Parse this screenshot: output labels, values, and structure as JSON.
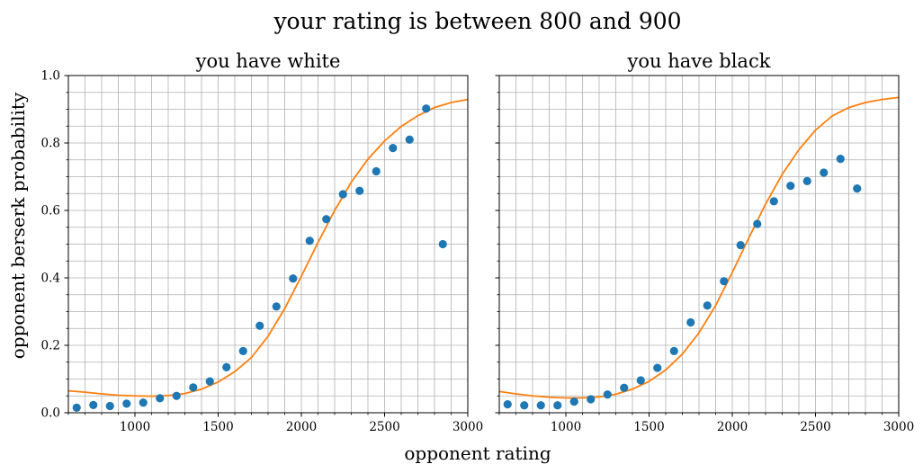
{
  "figure": {
    "title": "your rating is between   800 and   900",
    "xlabel": "opponent rating",
    "ylabel": "opponent berserk probability"
  },
  "colors": {
    "points": "#1f77b4",
    "curve": "#ff7f0e",
    "grid": "#b0b0b0",
    "axes": "#000000"
  },
  "chart_data": [
    {
      "type": "scatter",
      "title": "you have white",
      "xlim": [
        600,
        3000
      ],
      "ylim": [
        0,
        1.0
      ],
      "xticks": [
        1000,
        1500,
        2000,
        2500,
        3000
      ],
      "yticks": [
        0.0,
        0.2,
        0.4,
        0.6,
        0.8,
        1.0
      ],
      "ytick_labels": [
        "0.0",
        "0.2",
        "0.4",
        "0.6",
        "0.8",
        "1.0"
      ],
      "grid": true,
      "points": [
        [
          650,
          0.015
        ],
        [
          750,
          0.023
        ],
        [
          850,
          0.02
        ],
        [
          950,
          0.027
        ],
        [
          1050,
          0.03
        ],
        [
          1150,
          0.043
        ],
        [
          1250,
          0.05
        ],
        [
          1350,
          0.075
        ],
        [
          1450,
          0.093
        ],
        [
          1550,
          0.135
        ],
        [
          1650,
          0.183
        ],
        [
          1750,
          0.258
        ],
        [
          1850,
          0.315
        ],
        [
          1950,
          0.398
        ],
        [
          2050,
          0.51
        ],
        [
          2150,
          0.574
        ],
        [
          2250,
          0.648
        ],
        [
          2350,
          0.658
        ],
        [
          2450,
          0.716
        ],
        [
          2550,
          0.785
        ],
        [
          2650,
          0.81
        ],
        [
          2750,
          0.902
        ],
        [
          2850,
          0.5
        ]
      ],
      "fit_curve": [
        [
          600,
          0.065
        ],
        [
          700,
          0.061
        ],
        [
          800,
          0.056
        ],
        [
          900,
          0.052
        ],
        [
          1000,
          0.05
        ],
        [
          1100,
          0.049
        ],
        [
          1200,
          0.051
        ],
        [
          1300,
          0.057
        ],
        [
          1400,
          0.07
        ],
        [
          1500,
          0.091
        ],
        [
          1600,
          0.122
        ],
        [
          1700,
          0.164
        ],
        [
          1800,
          0.227
        ],
        [
          1900,
          0.309
        ],
        [
          2000,
          0.405
        ],
        [
          2100,
          0.505
        ],
        [
          2200,
          0.6
        ],
        [
          2300,
          0.684
        ],
        [
          2400,
          0.752
        ],
        [
          2500,
          0.806
        ],
        [
          2600,
          0.849
        ],
        [
          2700,
          0.881
        ],
        [
          2800,
          0.905
        ],
        [
          2900,
          0.92
        ],
        [
          3000,
          0.929
        ]
      ]
    },
    {
      "type": "scatter",
      "title": "you have black",
      "xlim": [
        600,
        3000
      ],
      "ylim": [
        0,
        1.0
      ],
      "xticks": [
        1000,
        1500,
        2000,
        2500,
        3000
      ],
      "yticks": [
        0.0,
        0.2,
        0.4,
        0.6,
        0.8,
        1.0
      ],
      "grid": true,
      "points": [
        [
          650,
          0.025
        ],
        [
          750,
          0.022
        ],
        [
          850,
          0.022
        ],
        [
          950,
          0.022
        ],
        [
          1050,
          0.033
        ],
        [
          1150,
          0.04
        ],
        [
          1250,
          0.054
        ],
        [
          1350,
          0.074
        ],
        [
          1450,
          0.096
        ],
        [
          1550,
          0.133
        ],
        [
          1650,
          0.183
        ],
        [
          1750,
          0.268
        ],
        [
          1850,
          0.318
        ],
        [
          1950,
          0.39
        ],
        [
          2050,
          0.497
        ],
        [
          2150,
          0.56
        ],
        [
          2250,
          0.627
        ],
        [
          2350,
          0.673
        ],
        [
          2450,
          0.687
        ],
        [
          2550,
          0.712
        ],
        [
          2650,
          0.753
        ],
        [
          2750,
          0.665
        ]
      ],
      "fit_curve": [
        [
          600,
          0.063
        ],
        [
          700,
          0.056
        ],
        [
          800,
          0.05
        ],
        [
          900,
          0.046
        ],
        [
          1000,
          0.044
        ],
        [
          1100,
          0.044
        ],
        [
          1200,
          0.047
        ],
        [
          1300,
          0.055
        ],
        [
          1400,
          0.07
        ],
        [
          1500,
          0.093
        ],
        [
          1600,
          0.127
        ],
        [
          1700,
          0.174
        ],
        [
          1800,
          0.237
        ],
        [
          1900,
          0.318
        ],
        [
          2000,
          0.416
        ],
        [
          2100,
          0.519
        ],
        [
          2200,
          0.619
        ],
        [
          2300,
          0.707
        ],
        [
          2400,
          0.78
        ],
        [
          2500,
          0.838
        ],
        [
          2600,
          0.88
        ],
        [
          2700,
          0.905
        ],
        [
          2800,
          0.92
        ],
        [
          2900,
          0.929
        ],
        [
          3000,
          0.935
        ]
      ]
    }
  ]
}
